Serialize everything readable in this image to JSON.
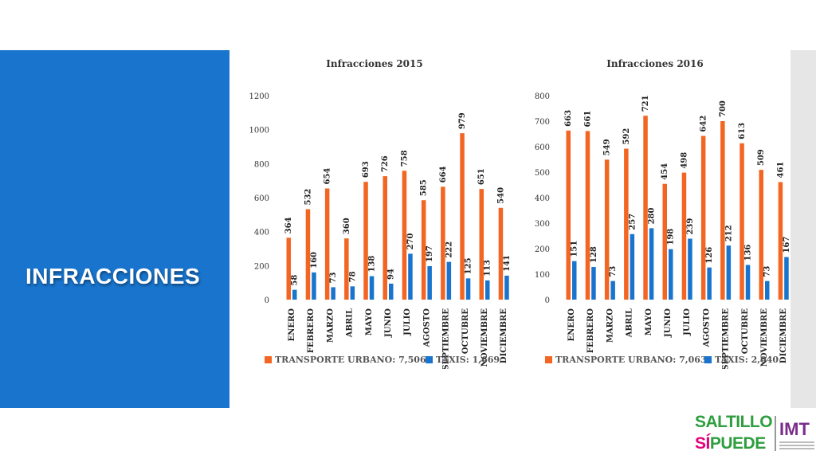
{
  "slide": {
    "title": "INFRACCIONES"
  },
  "logo": {
    "saltillo": "SALTILLO",
    "si": "SÍ",
    "puede": "PUEDE",
    "imt": "IMT"
  },
  "colors": {
    "transporte": "#F26522",
    "taxis": "#1874CD",
    "panel": "#1874CD"
  },
  "chart_data": [
    {
      "type": "bar",
      "title": "Infracciones 2015",
      "categories": [
        "ENERO",
        "FEBRERO",
        "MARZO",
        "ABRIL",
        "MAYO",
        "JUNIO",
        "JULIO",
        "AGOSTO",
        "SEPTIEMBRE",
        "OCTUBRE",
        "NOVIEMBRE",
        "DICIEMBRE"
      ],
      "series": [
        {
          "name": "TRANSPORTE URBANO",
          "legend": "TRANSPORTE URBANO: 7,506",
          "values": [
            364,
            532,
            654,
            360,
            693,
            726,
            758,
            585,
            664,
            979,
            651,
            540
          ]
        },
        {
          "name": "TAXIS",
          "legend": "TAXIS: 1,669",
          "values": [
            58,
            160,
            73,
            78,
            138,
            94,
            270,
            197,
            222,
            125,
            113,
            141
          ]
        }
      ],
      "yticks": [
        "0",
        "200",
        "400",
        "600",
        "800",
        "1000",
        "1200"
      ],
      "ylim": [
        0,
        1200
      ],
      "legend_position": "bottom",
      "grid": false
    },
    {
      "type": "bar",
      "title": "Infracciones 2016",
      "categories": [
        "ENERO",
        "FEBRERO",
        "MARZO",
        "ABRIL",
        "MAYO",
        "JUNIO",
        "JULIO",
        "AGOSTO",
        "SEPTIEMBRE",
        "OCTUBRE",
        "NOVIEMBRE",
        "DICIEMBRE"
      ],
      "series": [
        {
          "name": "TRANSPORTE URBANO",
          "legend": "TRANSPORTE URBANO: 7,063",
          "values": [
            663,
            661,
            549,
            592,
            721,
            454,
            498,
            642,
            700,
            613,
            509,
            461
          ]
        },
        {
          "name": "TAXIS",
          "legend": "TAXIS: 2,040",
          "values": [
            151,
            128,
            73,
            257,
            280,
            198,
            239,
            126,
            212,
            136,
            73,
            167
          ]
        }
      ],
      "yticks": [
        "0",
        "100",
        "200",
        "300",
        "400",
        "500",
        "600",
        "700",
        "800"
      ],
      "ylim": [
        0,
        800
      ],
      "legend_position": "bottom",
      "grid": false
    }
  ]
}
